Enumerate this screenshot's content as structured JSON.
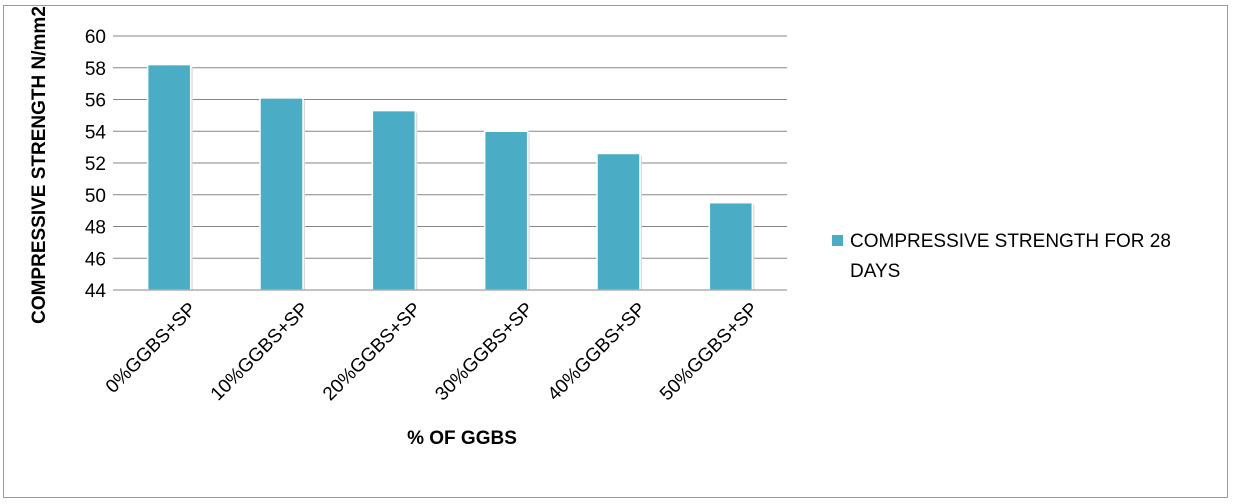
{
  "chart_data": {
    "type": "bar",
    "categories": [
      "0%GGBS+SP",
      "10%GGBS+SP",
      "20%GGBS+SP",
      "30%GGBS+SP",
      "40%GGBS+SP",
      "50%GGBS+SP"
    ],
    "series": [
      {
        "name": "COMPRESSIVE STRENGTH FOR 28 DAYS",
        "values": [
          58.2,
          56.1,
          55.3,
          54.0,
          52.6,
          49.5
        ]
      }
    ],
    "title": "",
    "xlabel": "% OF GGBS",
    "ylabel": "COMPRESSIVE  STRENGTH N/mm2",
    "ylim": [
      44,
      60
    ],
    "yticks": [
      44,
      46,
      48,
      50,
      52,
      54,
      56,
      58,
      60
    ],
    "grid": true,
    "legend_position": "right",
    "colors": {
      "bar": "#4bacc6",
      "bar_edge": "#ffffff",
      "grid": "#878787",
      "axis": "#878787"
    }
  }
}
